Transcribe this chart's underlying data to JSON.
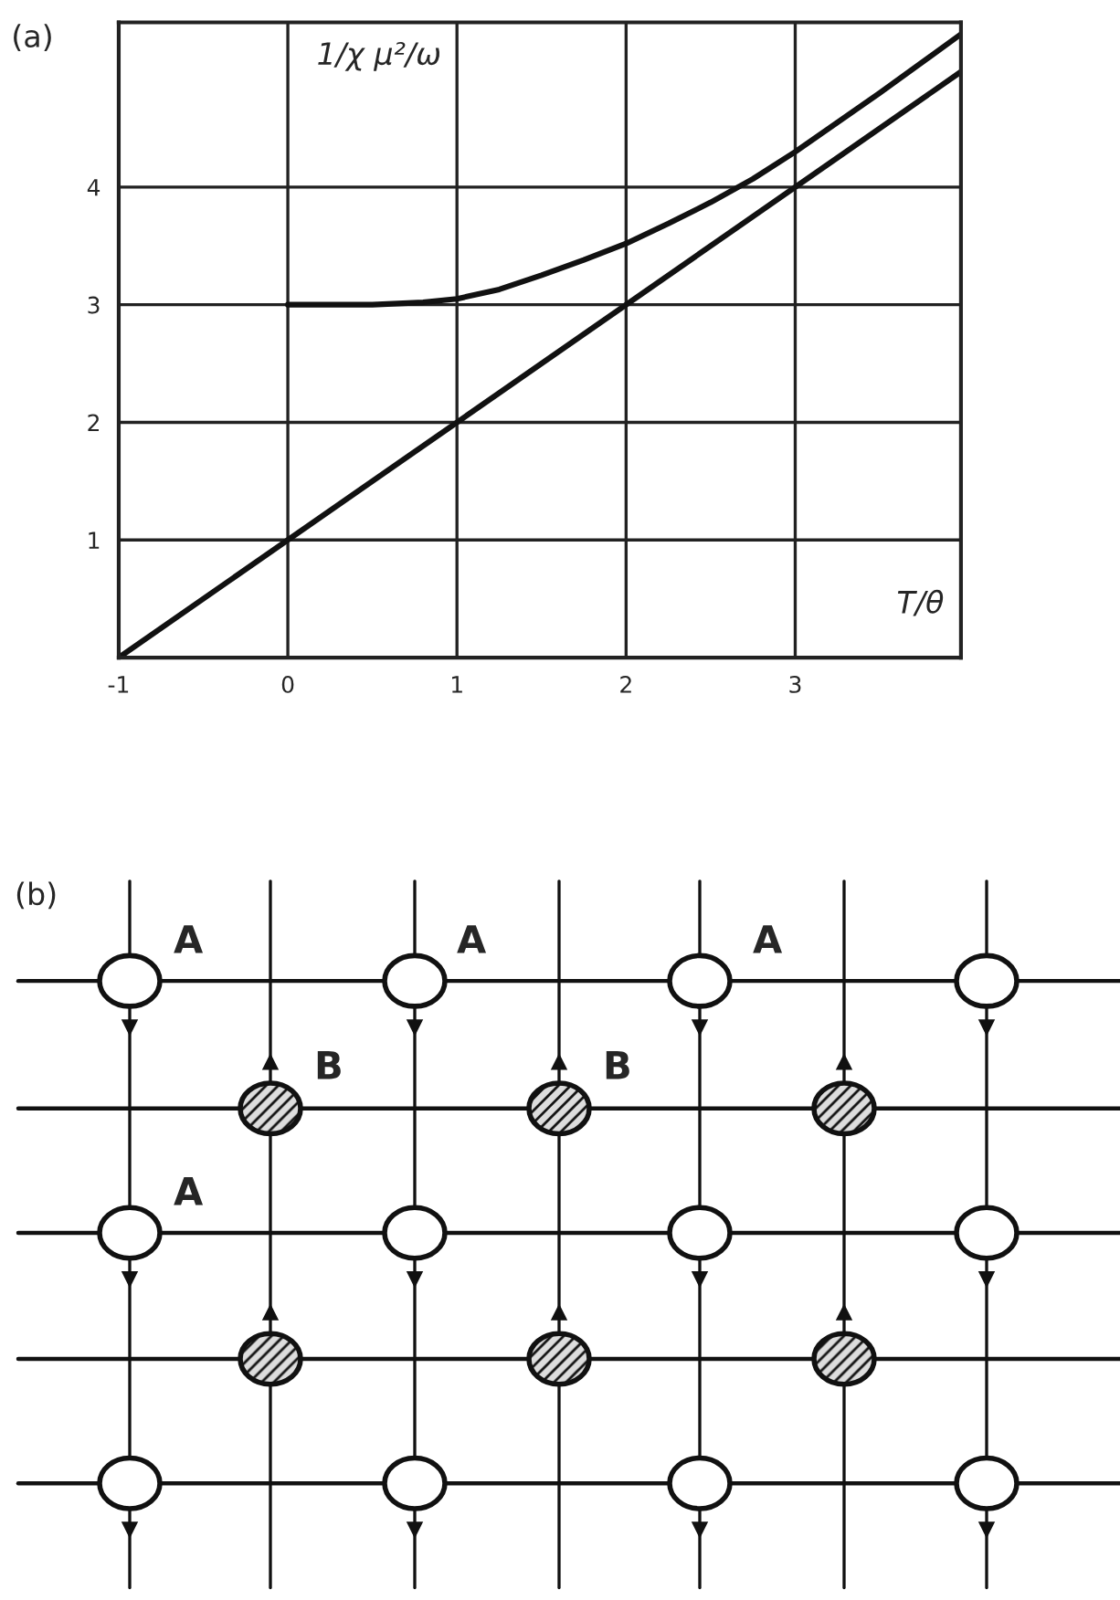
{
  "chart_data": [
    {
      "type": "line",
      "xlabel": "T/θ",
      "ylabel": "1/χ μ²/ω",
      "annotations": [
        "(a)"
      ],
      "series": [
        {
          "color": "#111111",
          "x": [
            0,
            0.5,
            0.8,
            1,
            1.25,
            1.5,
            1.75,
            2,
            2.25,
            2.5,
            2.75,
            3,
            3.5,
            3.98
          ],
          "values": [
            3,
            3,
            3.02,
            3.05,
            3.13,
            3.25,
            3.38,
            3.52,
            3.69,
            3.87,
            4.07,
            4.3,
            4.8,
            5.3
          ]
        },
        {
          "color": "#111111",
          "x": [
            -1,
            3.98
          ],
          "values": [
            0,
            4.98
          ]
        }
      ],
      "xlim": [
        -1,
        3.98
      ],
      "ylim": [
        0,
        5.4
      ],
      "xticks": [
        -1,
        0,
        1,
        2,
        3
      ],
      "yticks": [
        1,
        2,
        3,
        4
      ],
      "grid": true,
      "marker": "none",
      "line_style": "solid"
    },
    {
      "type": "other",
      "annotations": [
        "(b)",
        "A",
        "A",
        "A",
        "A",
        "B",
        "B"
      ]
    }
  ]
}
